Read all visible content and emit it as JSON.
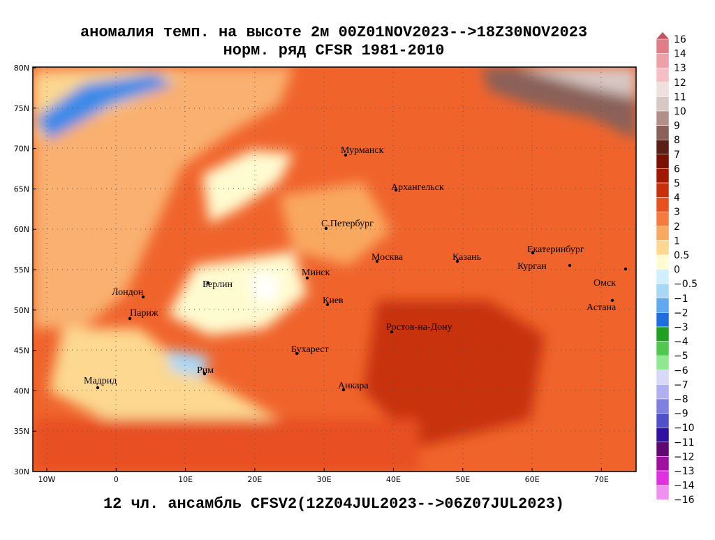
{
  "title": {
    "line1": "аномалия темп. на высоте 2м 00Z01NOV2023-->18Z30NOV2023",
    "line2": "норм. ряд CFSR 1981-2010"
  },
  "footer": "12 чл. ансамбль CFSV2(12Z04JUL2023-->06Z07JUL2023)",
  "axes": {
    "lat": [
      "80N",
      "75N",
      "70N",
      "65N",
      "60N",
      "55N",
      "50N",
      "45N",
      "40N",
      "35N",
      "30N"
    ],
    "lon": [
      "10W",
      "0",
      "10E",
      "20E",
      "30E",
      "40E",
      "50E",
      "60E",
      "70E"
    ]
  },
  "cities": [
    "Мурманск",
    "Архангельск",
    "С.Петербург",
    "Москва",
    "Казань",
    "Екатеринбург",
    "Курган",
    "Омск",
    "Астана",
    "Минск",
    "Берлин",
    "Лондон",
    "Париж",
    "Киев",
    "Ростов-на-Дону",
    "Бухарест",
    "Рим",
    "Мадрид",
    "Анкара"
  ],
  "colorbar": [
    {
      "label": "16",
      "color": "#c8505a"
    },
    {
      "label": "14",
      "color": "#e07d87"
    },
    {
      "label": "13",
      "color": "#eea0a8"
    },
    {
      "label": "12",
      "color": "#f5c0c5"
    },
    {
      "label": "11",
      "color": "#efe0e0"
    },
    {
      "label": "10",
      "color": "#d8c8c4"
    },
    {
      "label": "9",
      "color": "#b09088"
    },
    {
      "label": "8",
      "color": "#8a6058"
    },
    {
      "label": "7",
      "color": "#5a2015"
    },
    {
      "label": "6",
      "color": "#7a1000"
    },
    {
      "label": "5",
      "color": "#a01800"
    },
    {
      "label": "4",
      "color": "#c83008"
    },
    {
      "label": "3",
      "color": "#e85020"
    },
    {
      "label": "2",
      "color": "#f57a40"
    },
    {
      "label": "1",
      "color": "#f9a860"
    },
    {
      "label": "0.5",
      "color": "#fcd890"
    },
    {
      "label": "0",
      "color": "#fffbd0"
    },
    {
      "label": "−0.5",
      "color": "#d0f0ff"
    },
    {
      "label": "−1",
      "color": "#a8d8f8"
    },
    {
      "label": "−2",
      "color": "#60a8f0"
    },
    {
      "label": "−3",
      "color": "#1e6ee0"
    },
    {
      "label": "−4",
      "color": "#20a020"
    },
    {
      "label": "−5",
      "color": "#50c850"
    },
    {
      "label": "−6",
      "color": "#90e890"
    },
    {
      "label": "−7",
      "color": "#d8d8f8"
    },
    {
      "label": "−8",
      "color": "#b0b0f0"
    },
    {
      "label": "−9",
      "color": "#8080e0"
    },
    {
      "label": "−10",
      "color": "#5050c8"
    },
    {
      "label": "−11",
      "color": "#3010a0"
    },
    {
      "label": "−12",
      "color": "#600870"
    },
    {
      "label": "−13",
      "color": "#a010a0"
    },
    {
      "label": "−14",
      "color": "#e030e0"
    },
    {
      "label": "−16",
      "color": "#f090f0"
    }
  ]
}
